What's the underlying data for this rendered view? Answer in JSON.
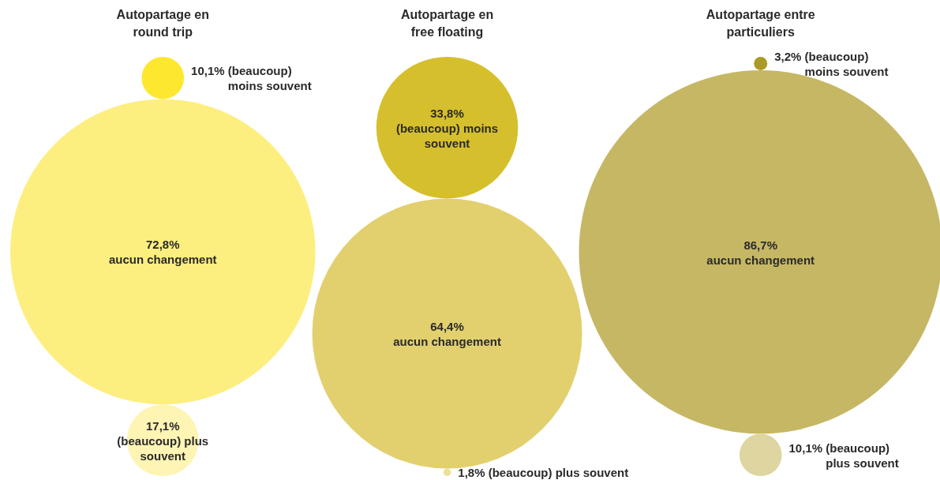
{
  "chart_data": [
    {
      "type": "other",
      "title": "Autopartage en round trip",
      "categories": [
        "(beaucoup) moins souvent",
        "aucun changement",
        "(beaucoup) plus souvent"
      ],
      "values": [
        10.1,
        72.8,
        17.1
      ],
      "value_labels": [
        "10,1%",
        "72,8%",
        "17,1%"
      ],
      "colors": [
        "#fde82f",
        "#fdee80",
        "#fef4b4"
      ]
    },
    {
      "type": "other",
      "title": "Autopartage en free floating",
      "categories": [
        "(beaucoup) moins souvent",
        "aucun changement",
        "(beaucoup) plus souvent"
      ],
      "values": [
        33.8,
        64.4,
        1.8
      ],
      "value_labels": [
        "33,8%",
        "64,4%",
        "1,8%"
      ],
      "colors": [
        "#d6bf2c",
        "#e2d06f",
        "#eadf9c"
      ]
    },
    {
      "type": "other",
      "title": "Autopartage entre particuliers",
      "categories": [
        "(beaucoup) moins souvent",
        "aucun changement",
        "(beaucoup) plus souvent"
      ],
      "values": [
        3.2,
        86.7,
        10.1
      ],
      "value_labels": [
        "3,2%",
        "86,7%",
        "10,1%"
      ],
      "colors": [
        "#ab9a27",
        "#c6b765",
        "#ded5a0"
      ]
    }
  ]
}
